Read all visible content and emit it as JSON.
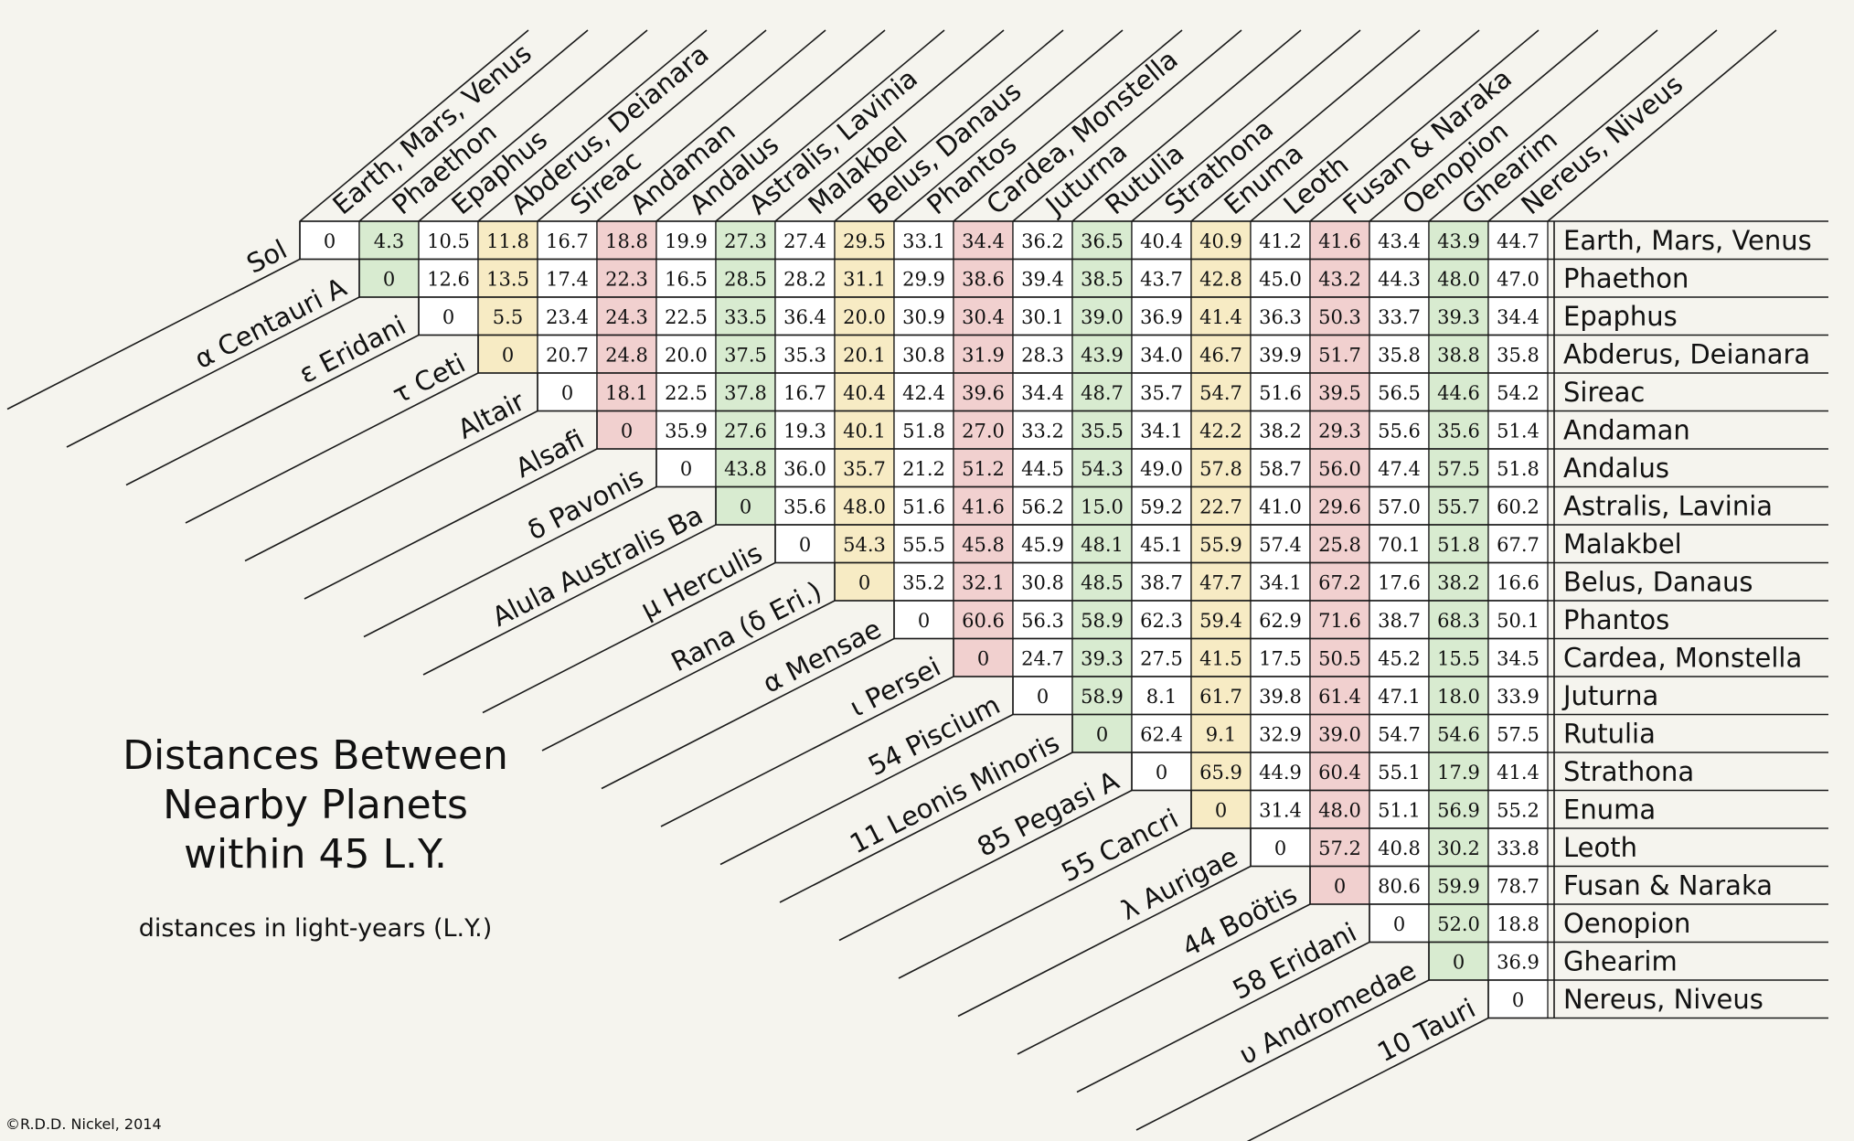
{
  "chart_data": {
    "type": "table",
    "title": [
      "Distances Between",
      "Nearby Planets",
      "within 45 L.Y."
    ],
    "subtitle": "distances in light-years (L.Y.)",
    "copyright": "©R.D.D. Nickel, 2014",
    "stars": [
      "Sol",
      "α Centauri A",
      "ε Eridani",
      "τ Ceti",
      "Altair",
      "Alsafi",
      "δ Pavonis",
      "Alula Australis Ba",
      "μ Herculis",
      "Rana (δ Eri.)",
      "α Mensae",
      "ι Persei",
      "54 Piscium",
      "11 Leonis Minoris",
      "85 Pegasi A",
      "55 Cancri",
      "λ Aurigae",
      "44 Boötis",
      "58 Eridani",
      "υ Andromedae",
      "10 Tauri"
    ],
    "planets": [
      "Earth, Mars, Venus",
      "Phaethon",
      "Epaphus",
      "Abderus, Deianara",
      "Sireac",
      "Andaman",
      "Andalus",
      "Astralis, Lavinia",
      "Malakbel",
      "Belus, Danaus",
      "Phantos",
      "Cardea, Monstella",
      "Juturna",
      "Rutulia",
      "Strathona",
      "Enuma",
      "Leoth",
      "Fusan & Naraka",
      "Oenopion",
      "Ghearim",
      "Nereus, Niveus"
    ],
    "column_colors": [
      "white",
      "green",
      "white",
      "yellow",
      "white",
      "red",
      "white",
      "green",
      "white",
      "yellow",
      "white",
      "red",
      "white",
      "green",
      "white",
      "yellow",
      "white",
      "red",
      "white",
      "green",
      "white"
    ],
    "palette": {
      "green": "#d8ebd0",
      "yellow": "#f7ebc4",
      "red": "#f1d0cf",
      "white": "#ffffff",
      "background": "#f5f4ee",
      "line": "#1a1a1a"
    },
    "rows": [
      [
        "0",
        "4.3",
        "10.5",
        "11.8",
        "16.7",
        "18.8",
        "19.9",
        "27.3",
        "27.4",
        "29.5",
        "33.1",
        "34.4",
        "36.2",
        "36.5",
        "40.4",
        "40.9",
        "41.2",
        "41.6",
        "43.4",
        "43.9",
        "44.7"
      ],
      [
        "0",
        "12.6",
        "13.5",
        "17.4",
        "22.3",
        "16.5",
        "28.5",
        "28.2",
        "31.1",
        "29.9",
        "38.6",
        "39.4",
        "38.5",
        "43.7",
        "42.8",
        "45.0",
        "43.2",
        "44.3",
        "48.0",
        "47.0"
      ],
      [
        "0",
        "5.5",
        "23.4",
        "24.3",
        "22.5",
        "33.5",
        "36.4",
        "20.0",
        "30.9",
        "30.4",
        "30.1",
        "39.0",
        "36.9",
        "41.4",
        "36.3",
        "50.3",
        "33.7",
        "39.3",
        "34.4"
      ],
      [
        "0",
        "20.7",
        "24.8",
        "20.0",
        "37.5",
        "35.3",
        "20.1",
        "30.8",
        "31.9",
        "28.3",
        "43.9",
        "34.0",
        "46.7",
        "39.9",
        "51.7",
        "35.8",
        "38.8",
        "35.8"
      ],
      [
        "0",
        "18.1",
        "22.5",
        "37.8",
        "16.7",
        "40.4",
        "42.4",
        "39.6",
        "34.4",
        "48.7",
        "35.7",
        "54.7",
        "51.6",
        "39.5",
        "56.5",
        "44.6",
        "54.2"
      ],
      [
        "0",
        "35.9",
        "27.6",
        "19.3",
        "40.1",
        "51.8",
        "27.0",
        "33.2",
        "35.5",
        "34.1",
        "42.2",
        "38.2",
        "29.3",
        "55.6",
        "35.6",
        "51.4"
      ],
      [
        "0",
        "43.8",
        "36.0",
        "35.7",
        "21.2",
        "51.2",
        "44.5",
        "54.3",
        "49.0",
        "57.8",
        "58.7",
        "56.0",
        "47.4",
        "57.5",
        "51.8"
      ],
      [
        "0",
        "35.6",
        "48.0",
        "51.6",
        "41.6",
        "56.2",
        "15.0",
        "59.2",
        "22.7",
        "41.0",
        "29.6",
        "57.0",
        "55.7",
        "60.2"
      ],
      [
        "0",
        "54.3",
        "55.5",
        "45.8",
        "45.9",
        "48.1",
        "45.1",
        "55.9",
        "57.4",
        "25.8",
        "70.1",
        "51.8",
        "67.7"
      ],
      [
        "0",
        "35.2",
        "32.1",
        "30.8",
        "48.5",
        "38.7",
        "47.7",
        "34.1",
        "67.2",
        "17.6",
        "38.2",
        "16.6"
      ],
      [
        "0",
        "60.6",
        "56.3",
        "58.9",
        "62.3",
        "59.4",
        "62.9",
        "71.6",
        "38.7",
        "68.3",
        "50.1"
      ],
      [
        "0",
        "24.7",
        "39.3",
        "27.5",
        "41.5",
        "17.5",
        "50.5",
        "45.2",
        "15.5",
        "34.5"
      ],
      [
        "0",
        "58.9",
        "8.1",
        "61.7",
        "39.8",
        "61.4",
        "47.1",
        "18.0",
        "33.9"
      ],
      [
        "0",
        "62.4",
        "9.1",
        "32.9",
        "39.0",
        "54.7",
        "54.6",
        "57.5"
      ],
      [
        "0",
        "65.9",
        "44.9",
        "60.4",
        "55.1",
        "17.9",
        "41.4"
      ],
      [
        "0",
        "31.4",
        "48.0",
        "51.1",
        "56.9",
        "55.2"
      ],
      [
        "0",
        "57.2",
        "40.8",
        "30.2",
        "33.8"
      ],
      [
        "0",
        "80.6",
        "59.9",
        "78.7"
      ],
      [
        "0",
        "52.0",
        "18.8"
      ],
      [
        "0",
        "36.9"
      ],
      [
        "0"
      ]
    ]
  }
}
